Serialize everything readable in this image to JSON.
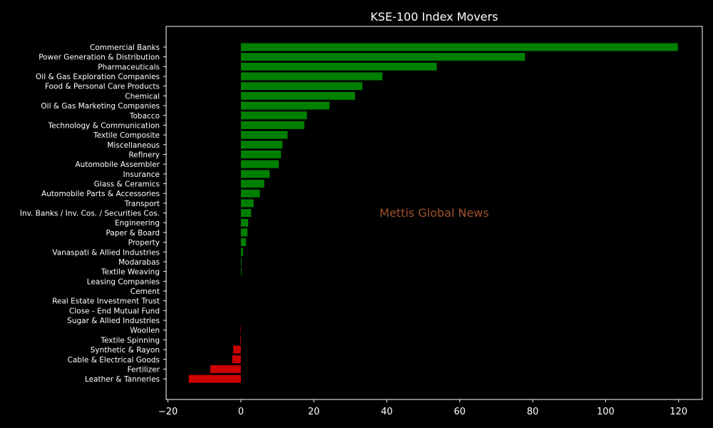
{
  "chart_data": {
    "type": "bar",
    "orientation": "horizontal",
    "title": "KSE-100 Index Movers",
    "xlabel": "",
    "ylabel": "",
    "xlim": [
      -20.5,
      126.5
    ],
    "xticks": [
      -20,
      0,
      20,
      40,
      60,
      80,
      100,
      120
    ],
    "grid": false,
    "legend": "none",
    "watermark": "Mettis Global News",
    "colors": {
      "positive": "#008000",
      "negative": "#cc0000",
      "background": "#000000",
      "text": "#ffffff",
      "watermark": "#a0522d"
    },
    "categories": [
      "Commercial Banks",
      "Power Generation & Distribution",
      "Pharmaceuticals",
      "Oil & Gas Exploration Companies",
      "Food & Personal Care Products",
      "Chemical",
      "Oil & Gas Marketing Companies",
      "Tobacco",
      "Technology & Communication",
      "Textile Composite",
      "Miscellaneous",
      "Refinery",
      "Automobile Assembler",
      "Insurance",
      "Glass & Ceramics",
      "Automobile Parts & Accessories",
      "Transport",
      "Inv. Banks / Inv. Cos. / Securities Cos.",
      "Engineering",
      "Paper & Board",
      "Property",
      "Vanaspati & Allied Industries",
      "Modarabas",
      "Textile Weaving",
      "Leasing Companies",
      "Cement",
      "Real Estate Investment Trust",
      "Close - End Mutual Fund",
      "Sugar & Allied Industries",
      "Woollen",
      "Textile Spinning",
      "Synthetic & Rayon",
      "Cable & Electrical Goods",
      "Fertilizer",
      "Leather & Tanneries"
    ],
    "values": [
      119.8,
      77.9,
      53.7,
      38.8,
      33.3,
      31.3,
      24.3,
      18.1,
      17.4,
      12.8,
      11.4,
      11.0,
      10.4,
      7.9,
      6.4,
      5.2,
      3.5,
      2.8,
      2.0,
      1.8,
      1.4,
      0.6,
      0.2,
      0.2,
      0.0,
      0.0,
      0.0,
      0.0,
      0.0,
      -0.1,
      -0.2,
      -2.1,
      -2.4,
      -8.4,
      -14.3
    ]
  }
}
